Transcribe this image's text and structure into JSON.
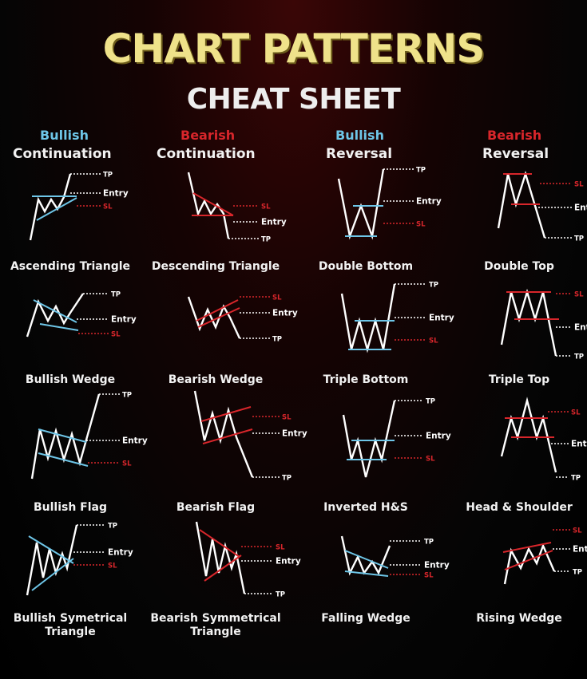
{
  "header": {
    "title": "CHART PATTERNS",
    "subtitle": "CHEAT SHEET"
  },
  "columns": [
    {
      "type": "Bullish",
      "kind": "Continuation"
    },
    {
      "type": "Bearish",
      "kind": "Continuation"
    },
    {
      "type": "Bullish",
      "kind": "Reversal"
    },
    {
      "type": "Bearish",
      "kind": "Reversal"
    }
  ],
  "colors": {
    "bullish_accent": "#6ec6e8",
    "bearish_accent": "#d8262b",
    "price_line": "#ffffff",
    "tp_line": "#ffffff",
    "entry_line": "#ffffff",
    "sl_line": "#d8262b"
  },
  "level_labels": {
    "tp": "TP",
    "entry": "Entry",
    "sl": "SL"
  },
  "patterns": [
    {
      "name": "Ascending Triangle"
    },
    {
      "name": "Descending Triangle"
    },
    {
      "name": "Double Bottom"
    },
    {
      "name": "Double Top"
    },
    {
      "name": "Bullish Wedge"
    },
    {
      "name": "Bearish Wedge"
    },
    {
      "name": "Triple Bottom"
    },
    {
      "name": "Triple Top"
    },
    {
      "name": "Bullish Flag"
    },
    {
      "name": "Bearish Flag"
    },
    {
      "name": "Inverted H&S"
    },
    {
      "name": "Head & Shoulder"
    },
    {
      "name": "Bullish Symetrical Triangle"
    },
    {
      "name": "Bearish Symmetrical Triangle"
    },
    {
      "name": "Falling Wedge"
    },
    {
      "name": "Rising Wedge"
    }
  ]
}
